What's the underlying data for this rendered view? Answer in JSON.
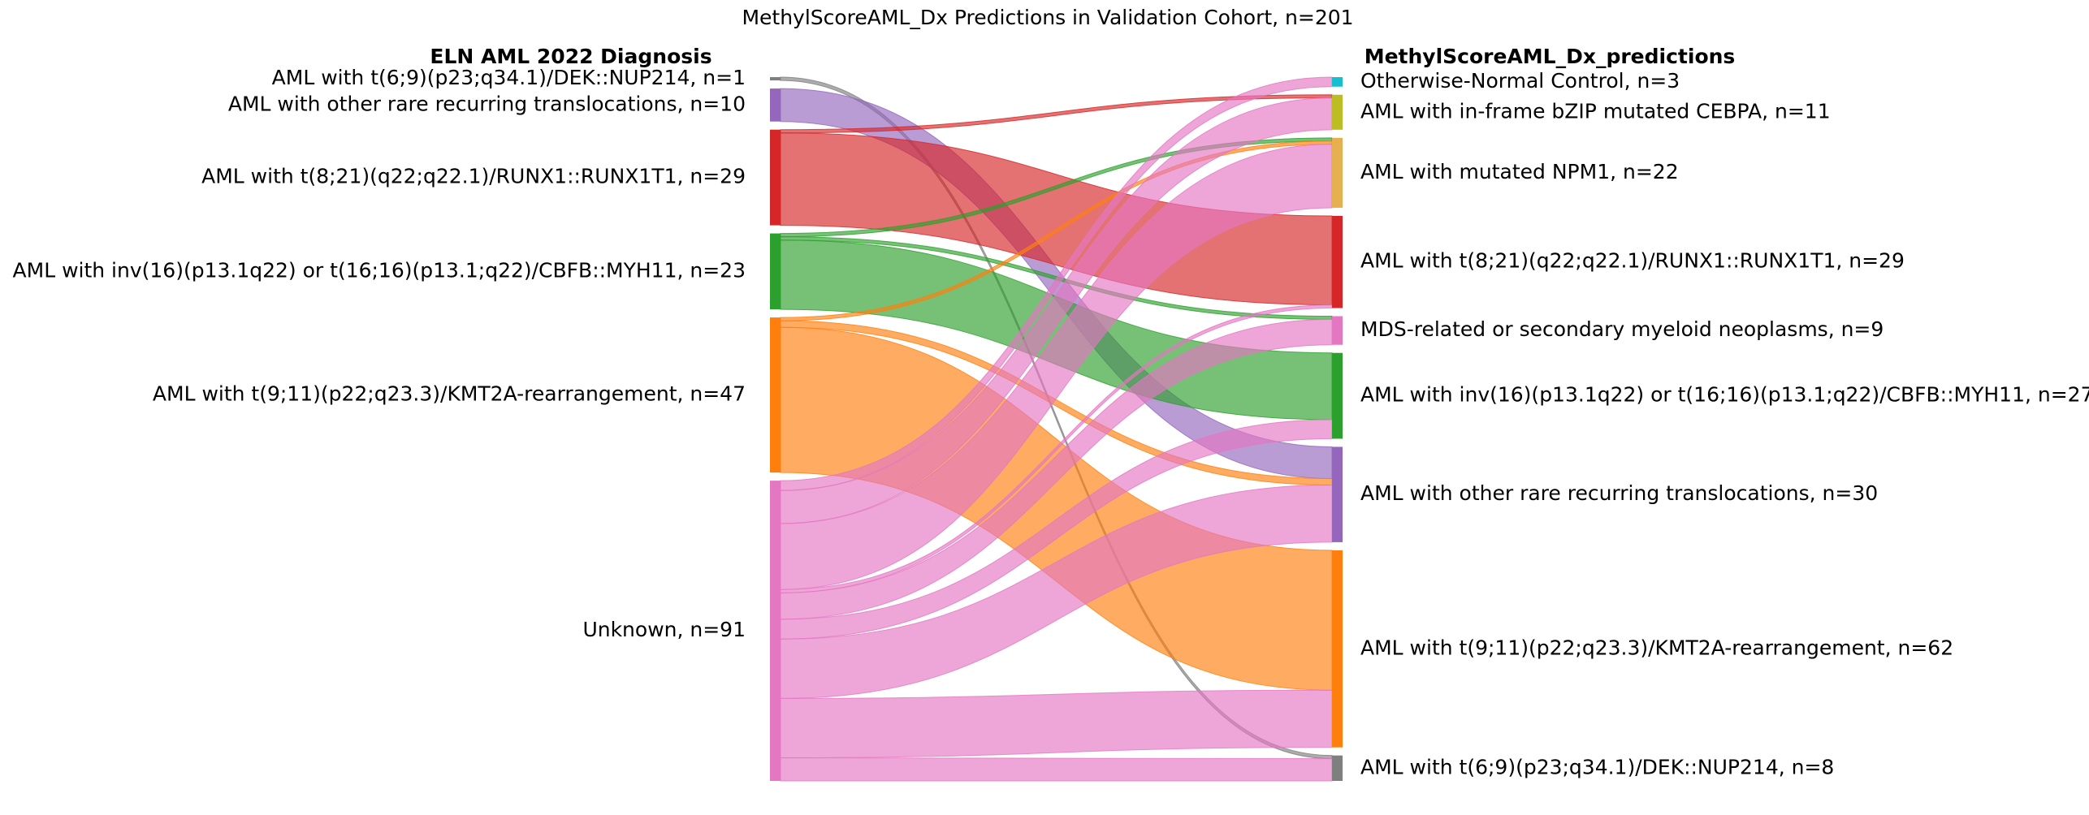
{
  "chart_data": {
    "type": "sankey",
    "title": "MethylScoreAML_Dx Predictions in Validation Cohort, n=201",
    "left_header": "ELN AML 2022 Diagnosis",
    "right_header": "MethylScoreAML_Dx_predictions",
    "colors": {
      "dek": "#7f7f7f",
      "other": "#9467bd",
      "runx": "#d62728",
      "cbfb": "#2ca02c",
      "kmt2a": "#ff7f0e",
      "unknown": "#e377c2",
      "normal": "#17becf",
      "cebpa": "#bcbd22",
      "npm1": "#e6b050",
      "mds": "#e377c2"
    },
    "left_nodes": [
      {
        "id": "dek",
        "label": "AML with t(6;9)(p23;q34.1)/DEK::NUP214, n=1",
        "value": 1
      },
      {
        "id": "other",
        "label": "AML with other rare recurring translocations, n=10",
        "value": 10
      },
      {
        "id": "runx",
        "label": "AML with t(8;21)(q22;q22.1)/RUNX1::RUNX1T1, n=29",
        "value": 29
      },
      {
        "id": "cbfb",
        "label": "AML with inv(16)(p13.1q22) or t(16;16)(p13.1;q22)/CBFB::MYH11, n=23",
        "value": 23
      },
      {
        "id": "kmt2a",
        "label": "AML with t(9;11)(p22;q23.3)/KMT2A-rearrangement, n=47",
        "value": 47
      },
      {
        "id": "unknown",
        "label": "Unknown, n=91",
        "value": 91
      }
    ],
    "right_nodes": [
      {
        "id": "normal",
        "label": "Otherwise-Normal Control, n=3",
        "value": 3
      },
      {
        "id": "cebpa",
        "label": "AML with in-frame bZIP mutated CEBPA, n=11",
        "value": 11
      },
      {
        "id": "npm1",
        "label": "AML with mutated NPM1, n=22",
        "value": 22
      },
      {
        "id": "runx",
        "label": "AML with t(8;21)(q22;q22.1)/RUNX1::RUNX1T1, n=29",
        "value": 29
      },
      {
        "id": "mds",
        "label": "MDS-related or secondary myeloid neoplasms, n=9",
        "value": 9
      },
      {
        "id": "cbfb",
        "label": "AML with inv(16)(p13.1q22) or t(16;16)(p13.1;q22)/CBFB::MYH11, n=27",
        "value": 27
      },
      {
        "id": "other",
        "label": "AML with other rare recurring translocations, n=30",
        "value": 30
      },
      {
        "id": "kmt2a",
        "label": "AML with t(9;11)(p22;q23.3)/KMT2A-rearrangement, n=62",
        "value": 62
      },
      {
        "id": "dek",
        "label": "AML with t(6;9)(p23;q34.1)/DEK::NUP214, n=8",
        "value": 8
      }
    ],
    "links": [
      {
        "source": "dek",
        "target": "dek",
        "value": 1
      },
      {
        "source": "other",
        "target": "other",
        "value": 10
      },
      {
        "source": "runx",
        "target": "cebpa",
        "value": 1
      },
      {
        "source": "runx",
        "target": "runx",
        "value": 28
      },
      {
        "source": "cbfb",
        "target": "npm1",
        "value": 1
      },
      {
        "source": "cbfb",
        "target": "mds",
        "value": 1
      },
      {
        "source": "cbfb",
        "target": "cbfb",
        "value": 21
      },
      {
        "source": "kmt2a",
        "target": "npm1",
        "value": 1
      },
      {
        "source": "kmt2a",
        "target": "other",
        "value": 2
      },
      {
        "source": "kmt2a",
        "target": "kmt2a",
        "value": 44
      },
      {
        "source": "unknown",
        "target": "normal",
        "value": 3
      },
      {
        "source": "unknown",
        "target": "cebpa",
        "value": 10
      },
      {
        "source": "unknown",
        "target": "npm1",
        "value": 20
      },
      {
        "source": "unknown",
        "target": "runx",
        "value": 1
      },
      {
        "source": "unknown",
        "target": "mds",
        "value": 8
      },
      {
        "source": "unknown",
        "target": "cbfb",
        "value": 6
      },
      {
        "source": "unknown",
        "target": "other",
        "value": 18
      },
      {
        "source": "unknown",
        "target": "kmt2a",
        "value": 18
      },
      {
        "source": "unknown",
        "target": "dek",
        "value": 7
      }
    ]
  }
}
